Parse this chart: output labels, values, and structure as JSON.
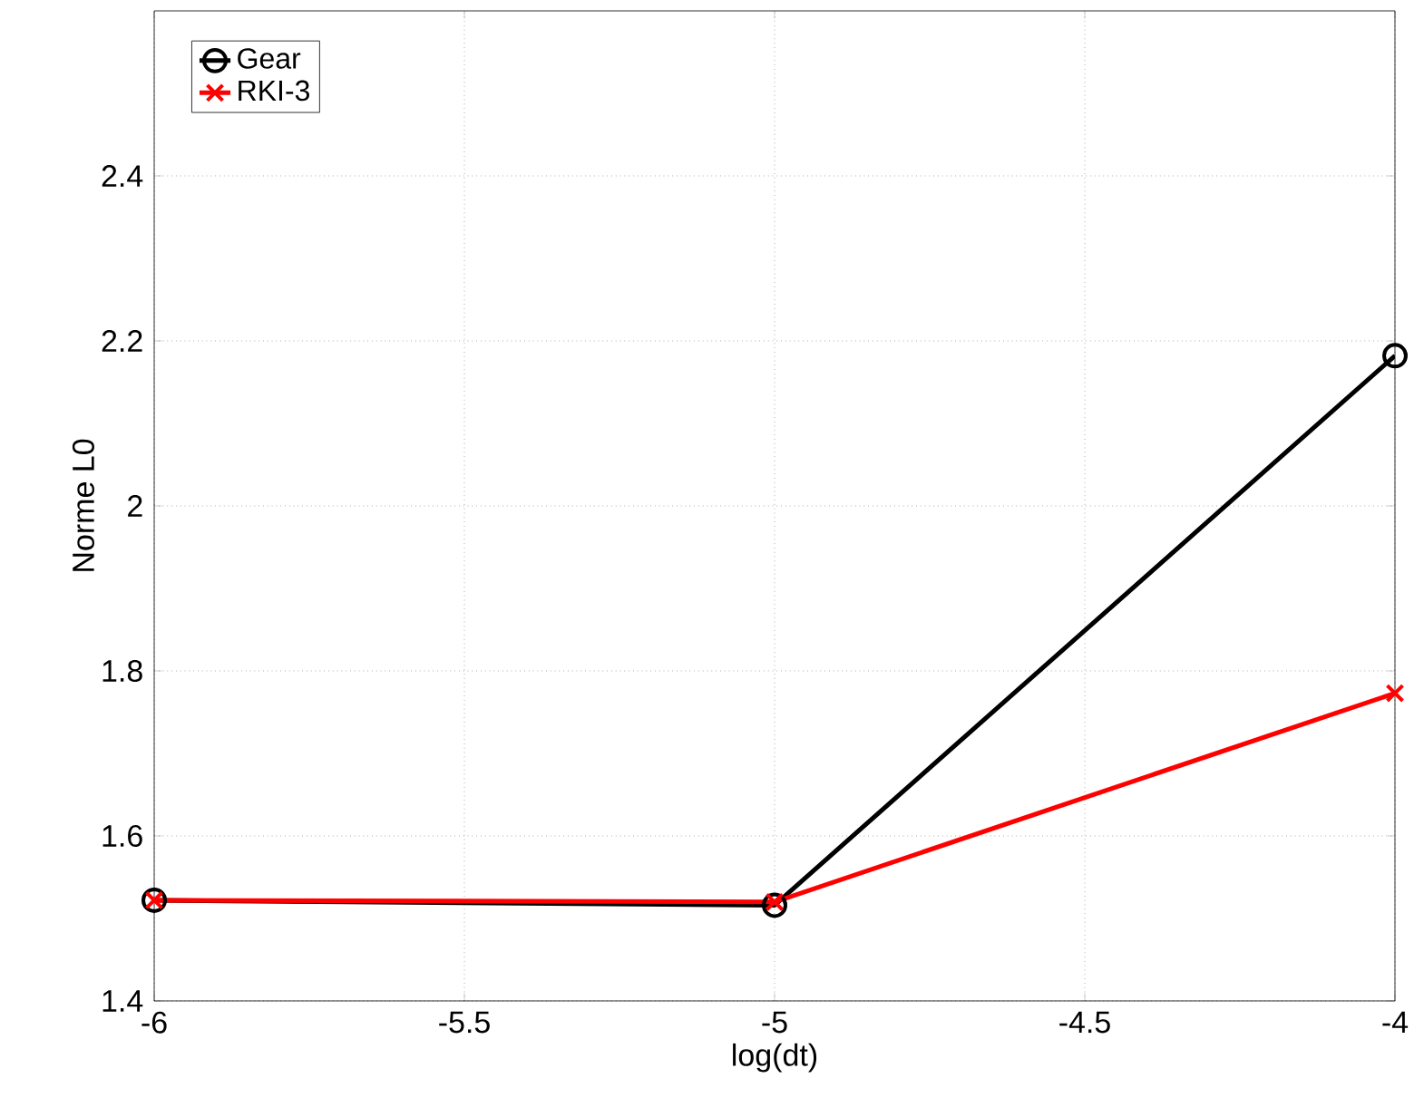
{
  "chart_data": {
    "type": "line",
    "xlabel": "log(dt)",
    "ylabel": "Norme L0",
    "x": [
      -6,
      -5,
      -4
    ],
    "series": [
      {
        "name": "Gear",
        "color": "#000000",
        "marker": "circle",
        "values": [
          1.522,
          1.516,
          2.182
        ]
      },
      {
        "name": "RKI-3",
        "color": "#ff0000",
        "marker": "cross",
        "values": [
          1.522,
          1.52,
          1.773
        ]
      }
    ],
    "xlim": [
      -6,
      -4
    ],
    "ylim": [
      1.4,
      2.6
    ],
    "xticks": [
      -6,
      -5.5,
      -5,
      -4.5,
      -4
    ],
    "yticks": [
      1.4,
      1.6,
      1.8,
      2,
      2.2,
      2.4
    ],
    "grid": true,
    "legend": "top left",
    "line_style": "solid"
  }
}
